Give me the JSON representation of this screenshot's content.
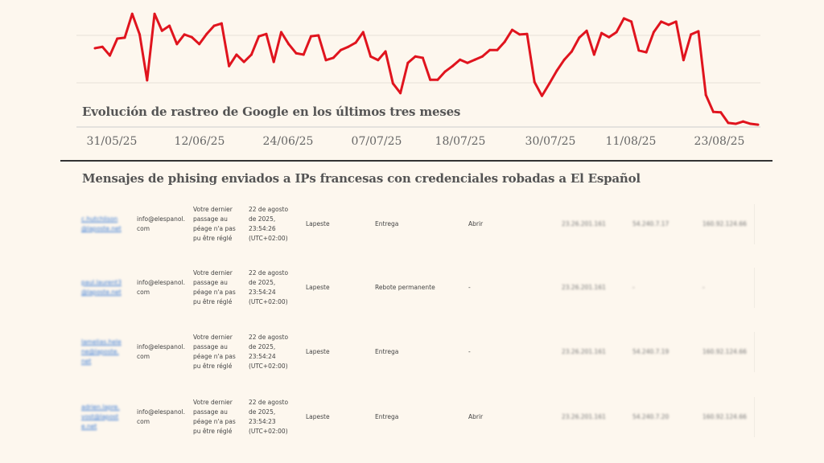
{
  "chart_data": {
    "type": "line",
    "title": "Evolución de rastreo de Google en los últimos tres meses",
    "x_tick_labels": [
      "31/05/25",
      "12/06/25",
      "24/06/25",
      "07/07/25",
      "18/07/25",
      "30/07/25",
      "11/08/25",
      "23/08/25"
    ],
    "y_tick_labels": [],
    "grid": true,
    "line_color": "#e0141e",
    "values": [
      172,
      175,
      156,
      193,
      195,
      247,
      202,
      102,
      247,
      210,
      221,
      181,
      202,
      196,
      181,
      203,
      221,
      226,
      133,
      158,
      142,
      158,
      198,
      203,
      142,
      207,
      181,
      161,
      158,
      198,
      200,
      146,
      151,
      168,
      175,
      184,
      207,
      154,
      146,
      165,
      95,
      74,
      140,
      154,
      151,
      103,
      103,
      121,
      133,
      147,
      140,
      147,
      154,
      168,
      168,
      186,
      212,
      202,
      203,
      98,
      68,
      95,
      123,
      147,
      165,
      195,
      210,
      158,
      205,
      196,
      207,
      237,
      230,
      167,
      163,
      207,
      230,
      223,
      230,
      146,
      202,
      209,
      70,
      33,
      32,
      9,
      7,
      12,
      7,
      5
    ]
  },
  "table": {
    "title": "Mensajes de phising enviados a IPs francesas con credenciales robadas a El Español",
    "rows": [
      {
        "email": "c.hutchlison@laposte.net",
        "from": "info@elespanol.com",
        "subject": "Votre dernier passage au péage n'a pas pu être réglé",
        "date": "22 de agosto de 2025, 23:54:26 (UTC+02:00)",
        "provider": "Lapeste",
        "status": "Entrega",
        "opened": "Abrir",
        "ip1": "23.26.201.161",
        "ip2": "54.240.7.17",
        "ip3": "160.92.124.66"
      },
      {
        "email": "paul.laurent3@laposte.net",
        "from": "info@elespanol.com",
        "subject": "Votre dernier passage au péage n'a pas pu être réglé",
        "date": "22 de agosto de 2025, 23:54:24 (UTC+02:00)",
        "provider": "Lapeste",
        "status": "Rebote permanente",
        "opened": "-",
        "ip1": "23.26.201.161",
        "ip2": "-",
        "ip3": "-"
      },
      {
        "email": "lamelias.helene@laposte.net",
        "from": "info@elespanol.com",
        "subject": "Votre dernier passage au péage n'a pas pu être réglé",
        "date": "22 de agosto de 2025, 23:54:24 (UTC+02:00)",
        "provider": "Lapeste",
        "status": "Entrega",
        "opened": "-",
        "ip1": "23.26.201.161",
        "ip2": "54.240.7.19",
        "ip3": "160.92.124.66"
      },
      {
        "email": "adrien.lapre.vost@laposte.net",
        "from": "info@elespanol.com",
        "subject": "Votre dernier passage au péage n'a pas pu être réglé",
        "date": "22 de agosto de 2025, 23:54:23 (UTC+02:00)",
        "provider": "Lapeste",
        "status": "Entrega",
        "opened": "Abrir",
        "ip1": "23.26.201.161",
        "ip2": "54.240.7.20",
        "ip3": "160.92.124.66"
      }
    ]
  }
}
